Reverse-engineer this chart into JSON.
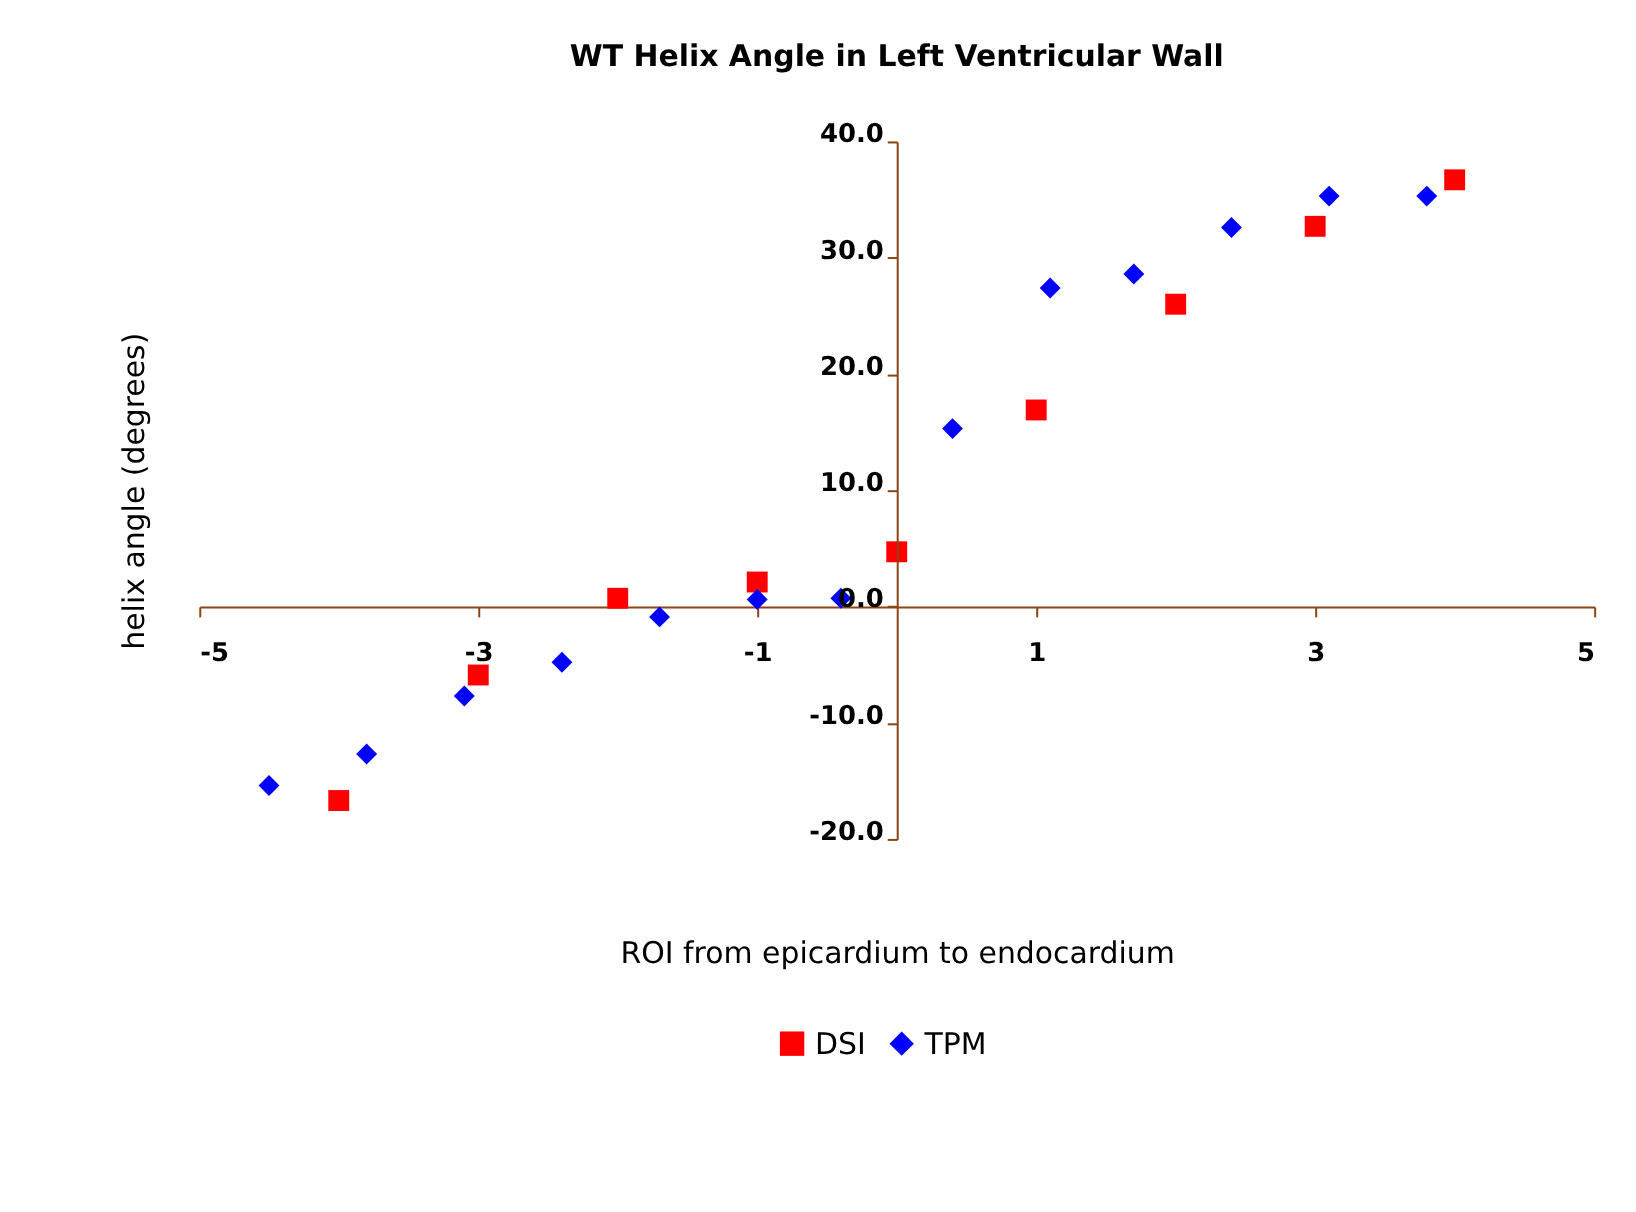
{
  "chart_data": {
    "type": "scatter",
    "title": "WT Helix Angle in Left Ventricular Wall",
    "xlabel": "ROI from epicardium to endocardium",
    "ylabel": "helix angle (degrees)",
    "xlim": [
      -5,
      5
    ],
    "xticks": [
      -5,
      -3,
      -1,
      1,
      3,
      5
    ],
    "ylim": [
      -20,
      40
    ],
    "yticks": [
      {
        "value": -20,
        "label": "-20.0"
      },
      {
        "value": -10,
        "label": "-10.0"
      },
      {
        "value": 0,
        "label": "0.0"
      },
      {
        "value": 10,
        "label": "10.0"
      },
      {
        "value": 20,
        "label": "20.0"
      },
      {
        "value": 30,
        "label": "30.0"
      },
      {
        "value": 40,
        "label": "40.0"
      }
    ],
    "grid": false,
    "legend": "bottom",
    "series": [
      {
        "name": "DSI",
        "color": "#ff0000",
        "marker": "square",
        "x": [
          -4,
          -3,
          -2,
          -1,
          0,
          1,
          2,
          3,
          4
        ],
        "values": [
          -16.7,
          -5.9,
          0.7,
          2.1,
          4.7,
          16.9,
          26.0,
          32.7,
          36.7
        ]
      },
      {
        "name": "TPM",
        "color": "#0000ff",
        "marker": "diamond",
        "x": [
          -4.5,
          -3.8,
          -3.1,
          -2.4,
          -1.7,
          -1.0,
          -0.4,
          0.4,
          1.1,
          1.7,
          2.4,
          3.1,
          3.8
        ],
        "values": [
          -15.4,
          -12.7,
          -7.7,
          -4.8,
          -0.9,
          0.6,
          0.7,
          15.3,
          27.4,
          28.6,
          32.6,
          35.3,
          35.3
        ]
      }
    ]
  }
}
